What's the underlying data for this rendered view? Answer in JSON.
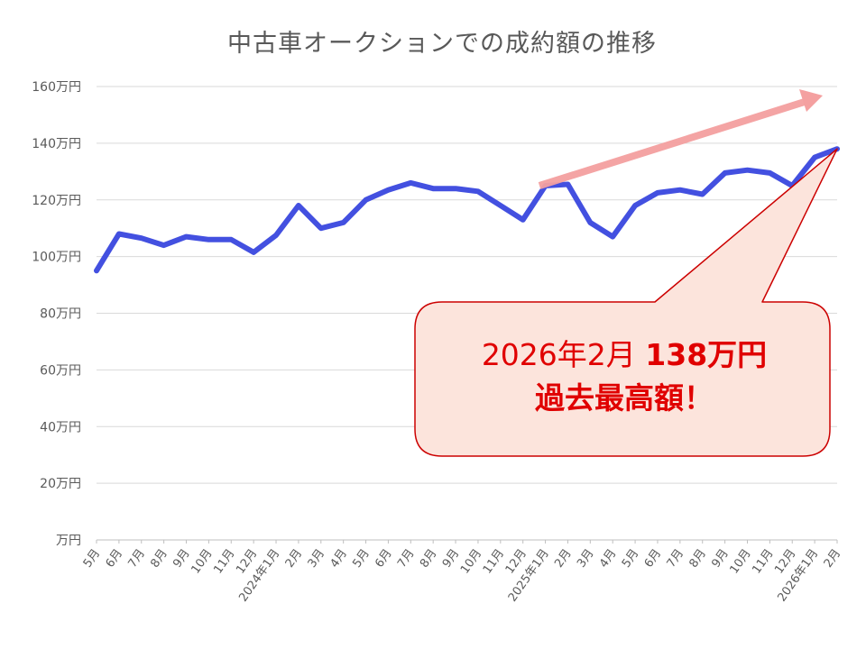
{
  "chart_data": {
    "type": "line",
    "title": "中古車オークションでの成約額の推移",
    "xlabel": "",
    "ylabel": "",
    "ylim": [
      0,
      160
    ],
    "y_ticks": [
      "万円",
      "20万円",
      "40万円",
      "60万円",
      "80万円",
      "100万円",
      "120万円",
      "140万円",
      "160万円"
    ],
    "y_tick_values": [
      0,
      20,
      40,
      60,
      80,
      100,
      120,
      140,
      160
    ],
    "grid": true,
    "legend": "none",
    "categories": [
      "5月",
      "6月",
      "7月",
      "8月",
      "9月",
      "10月",
      "11月",
      "12月",
      "2024年1月",
      "2月",
      "3月",
      "4月",
      "5月",
      "6月",
      "7月",
      "8月",
      "9月",
      "10月",
      "11月",
      "12月",
      "2025年1月",
      "2月",
      "3月",
      "4月",
      "5月",
      "6月",
      "7月",
      "8月",
      "9月",
      "10月",
      "11月",
      "12月",
      "2026年1月",
      "2月"
    ],
    "series": [
      {
        "name": "成約額",
        "color": "#4350e0",
        "values": [
          95,
          108,
          106.5,
          104,
          107,
          106,
          106,
          101.5,
          107.5,
          118,
          110,
          112,
          120,
          123.5,
          126,
          124,
          124,
          123,
          118,
          113,
          125,
          125.5,
          112,
          107,
          118,
          122.5,
          123.5,
          122,
          129.5,
          130.5,
          129.5,
          125,
          135,
          138
        ]
      }
    ],
    "annotations": [
      {
        "type": "callout",
        "line1_normal": "2026年2月 ",
        "line1_bold": "138万円",
        "line2": "過去最高額！",
        "text_color": "#e00000",
        "fill": "#fce4dc",
        "border": "#cc0000",
        "points_to": "2026年2月"
      },
      {
        "type": "trend-arrow",
        "color": "#f4a0a0",
        "from_category": "2025年1月",
        "direction": "up-right"
      }
    ]
  },
  "colors": {
    "line": "#4350e0",
    "grid": "#d9d9d9",
    "axis_text": "#595959",
    "arrow": "#f4a0a0",
    "callout_fill": "#fce4dc",
    "callout_border": "#cc0000",
    "callout_text": "#e00000"
  }
}
